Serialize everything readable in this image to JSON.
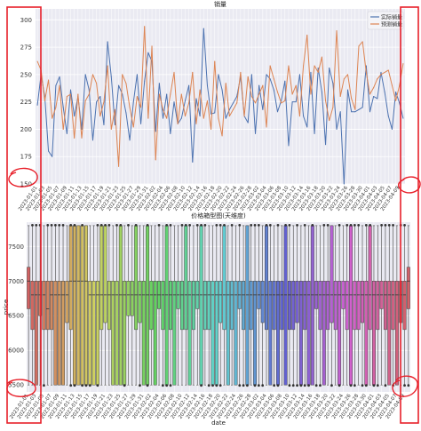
{
  "colors": {
    "background": "#ffffff",
    "plot_bg": "#eaeaf2",
    "grid": "#ffffff",
    "actual": "#4c72b0",
    "predicted": "#dd8452",
    "annotation": "#e8202a"
  },
  "chart_data": [
    {
      "type": "line",
      "title": "销量",
      "xlabel": "",
      "ylabel": "",
      "ylim": [
        150,
        310
      ],
      "yticks": [
        150,
        175,
        200,
        225,
        250,
        275,
        300
      ],
      "grid": true,
      "legend": "top-right",
      "x": [
        "2023-01-01",
        "2023-01-02",
        "2023-01-03",
        "2023-01-04",
        "2023-01-05",
        "2023-01-06",
        "2023-01-07",
        "2023-01-08",
        "2023-01-09",
        "2023-01-10",
        "2023-01-11",
        "2023-01-12",
        "2023-01-13",
        "2023-01-14",
        "2023-01-15",
        "2023-01-16",
        "2023-01-17",
        "2023-01-18",
        "2023-01-19",
        "2023-01-20",
        "2023-01-21",
        "2023-01-22",
        "2023-01-23",
        "2023-01-24",
        "2023-01-25",
        "2023-01-26",
        "2023-01-27",
        "2023-01-28",
        "2023-01-29",
        "2023-01-30",
        "2023-01-31",
        "2023-02-01",
        "2023-02-02",
        "2023-02-03",
        "2023-02-04",
        "2023-02-05",
        "2023-02-06",
        "2023-02-07",
        "2023-02-08",
        "2023-02-09",
        "2023-02-10",
        "2023-02-11",
        "2023-02-12",
        "2023-02-13",
        "2023-02-14",
        "2023-02-15",
        "2023-02-16",
        "2023-02-17",
        "2023-02-18",
        "2023-02-19",
        "2023-02-20",
        "2023-02-21",
        "2023-02-22",
        "2023-02-23",
        "2023-02-24",
        "2023-02-25",
        "2023-02-26",
        "2023-02-27",
        "2023-02-28",
        "2023-03-01",
        "2023-03-02",
        "2023-03-03",
        "2023-03-04",
        "2023-03-05",
        "2023-03-06",
        "2023-03-07",
        "2023-03-08",
        "2023-03-09",
        "2023-03-10",
        "2023-03-11",
        "2023-03-12",
        "2023-03-13",
        "2023-03-14",
        "2023-03-15",
        "2023-03-16",
        "2023-03-17",
        "2023-03-18",
        "2023-03-19",
        "2023-03-20",
        "2023-03-21",
        "2023-03-22",
        "2023-03-23",
        "2023-03-24",
        "2023-03-25",
        "2023-03-26",
        "2023-03-27",
        "2023-03-28",
        "2023-03-29",
        "2023-03-30",
        "2023-03-31",
        "2023-04-01",
        "2023-04-02",
        "2023-04-03",
        "2023-04-04",
        "2023-04-05",
        "2023-04-06",
        "2023-04-07",
        "2023-04-08",
        "2023-04-09",
        "2023-04-10"
      ],
      "series": [
        {
          "name": "实际销量",
          "values": [
            222,
            250,
            230,
            180,
            175,
            240,
            248,
            220,
            196,
            236,
            212,
            230,
            200,
            250,
            236,
            190,
            225,
            230,
            204,
            280,
            248,
            204,
            240,
            232,
            215,
            190,
            225,
            250,
            205,
            244,
            270,
            262,
            198,
            242,
            210,
            232,
            196,
            225,
            205,
            210,
            226,
            240,
            170,
            228,
            212,
            292,
            240,
            214,
            215,
            250,
            236,
            210,
            218,
            224,
            230,
            248,
            212,
            206,
            250,
            196,
            240,
            218,
            250,
            246,
            236,
            216,
            226,
            244,
            185,
            225,
            225,
            250,
            212,
            202,
            252,
            196,
            256,
            234,
            186,
            256,
            242,
            200,
            216,
            150,
            236,
            216,
            216,
            218,
            220,
            258,
            216,
            230,
            228,
            252,
            234,
            212,
            200,
            234,
            224,
            210
          ]
        },
        {
          "name": "预测销量",
          "values": [
            262,
            254,
            226,
            245,
            210,
            220,
            240,
            200,
            230,
            232,
            192,
            232,
            192,
            226,
            232,
            250,
            242,
            212,
            225,
            258,
            200,
            218,
            166,
            250,
            242,
            220,
            202,
            230,
            220,
            294,
            210,
            276,
            172,
            232,
            218,
            210,
            232,
            252,
            205,
            232,
            212,
            224,
            252,
            205,
            236,
            210,
            226,
            200,
            262,
            210,
            194,
            242,
            212,
            218,
            224,
            252,
            212,
            248,
            230,
            224,
            232,
            240,
            202,
            258,
            246,
            234,
            224,
            226,
            258,
            232,
            240,
            212,
            258,
            286,
            232,
            258,
            252,
            266,
            226,
            208,
            220,
            290,
            230,
            246,
            250,
            228,
            218,
            276,
            280,
            252,
            232,
            238,
            246,
            250,
            252,
            254,
            240,
            226,
            240,
            260
          ]
        }
      ]
    },
    {
      "type": "box",
      "title": "价格箱型图(天维度)",
      "xlabel": "date",
      "ylabel": "price",
      "ylim": [
        5400,
        7850
      ],
      "yticks": [
        5500,
        6000,
        6500,
        7000,
        7500
      ],
      "grid": true,
      "whisker_low": 5500,
      "whisker_high": 7800,
      "categories": [
        "2023-01-01",
        "2023-01-02",
        "2023-01-03",
        "2023-01-04",
        "2023-01-05",
        "2023-01-06",
        "2023-01-07",
        "2023-01-08",
        "2023-01-09",
        "2023-01-10",
        "2023-01-11",
        "2023-01-12",
        "2023-01-13",
        "2023-01-14",
        "2023-01-15",
        "2023-01-16",
        "2023-01-17",
        "2023-01-18",
        "2023-01-19",
        "2023-01-20",
        "2023-01-21",
        "2023-01-22",
        "2023-01-23",
        "2023-01-24",
        "2023-01-25",
        "2023-01-26",
        "2023-01-27",
        "2023-01-28",
        "2023-01-29",
        "2023-01-30",
        "2023-01-31",
        "2023-02-01",
        "2023-02-02",
        "2023-02-03",
        "2023-02-04",
        "2023-02-05",
        "2023-02-06",
        "2023-02-07",
        "2023-02-08",
        "2023-02-09",
        "2023-02-10",
        "2023-02-11",
        "2023-02-12",
        "2023-02-13",
        "2023-02-14",
        "2023-02-15",
        "2023-02-16",
        "2023-02-17",
        "2023-02-18",
        "2023-02-19",
        "2023-02-20",
        "2023-02-21",
        "2023-02-22",
        "2023-02-23",
        "2023-02-24",
        "2023-02-25",
        "2023-02-26",
        "2023-02-27",
        "2023-02-28",
        "2023-03-01",
        "2023-03-02",
        "2023-03-03",
        "2023-03-04",
        "2023-03-05",
        "2023-03-06",
        "2023-03-07",
        "2023-03-08",
        "2023-03-09",
        "2023-03-10",
        "2023-03-11",
        "2023-03-12",
        "2023-03-13",
        "2023-03-14",
        "2023-03-15",
        "2023-03-16",
        "2023-03-17",
        "2023-03-18",
        "2023-03-19",
        "2023-03-20",
        "2023-03-21",
        "2023-03-22",
        "2023-03-23",
        "2023-03-24",
        "2023-03-25",
        "2023-03-26",
        "2023-03-27",
        "2023-03-28",
        "2023-03-29",
        "2023-03-30",
        "2023-03-31",
        "2023-04-01",
        "2023-04-02",
        "2023-04-03",
        "2023-04-04",
        "2023-04-05",
        "2023-04-06",
        "2023-04-07",
        "2023-04-08",
        "2023-04-09",
        "2023-04-10"
      ],
      "tick_labels": [
        "2023-01-01",
        "2023-01-03",
        "2023-01-05",
        "2023-01-07",
        "2023-01-09",
        "2023-01-11",
        "2023-01-13",
        "2023-01-15",
        "2023-01-17",
        "2023-01-19",
        "2023-01-21",
        "2023-01-23",
        "2023-01-25",
        "2023-01-27",
        "2023-01-29",
        "2023-01-31",
        "2023-02-02",
        "2023-02-04",
        "2023-02-06",
        "2023-02-08",
        "2023-02-10",
        "2023-02-12",
        "2023-02-14",
        "2023-02-16",
        "2023-02-18",
        "2023-02-20",
        "2023-02-22",
        "2023-02-24",
        "2023-02-26",
        "2023-02-28",
        "2023-03-02",
        "2023-03-04",
        "2023-03-06",
        "2023-03-08",
        "2023-03-10",
        "2023-03-12",
        "2023-03-14",
        "2023-03-16",
        "2023-03-18",
        "2023-03-20",
        "2023-03-22",
        "2023-03-24",
        "2023-03-26",
        "2023-03-28",
        "2023-03-30",
        "2023-04-01",
        "2023-04-03",
        "2023-04-05",
        "2023-04-07",
        "2023-04-09"
      ],
      "q1": [
        6600,
        6300,
        5500,
        6500,
        6300,
        6300,
        6300,
        5500,
        5500,
        5500,
        6400,
        6300,
        5500,
        5500,
        5500,
        5500,
        5500,
        5500,
        5500,
        6300,
        6400,
        6300,
        5500,
        5500,
        5500,
        5500,
        6500,
        6500,
        6300,
        6400,
        5500,
        5500,
        6300,
        5500,
        6600,
        6300,
        5500,
        6300,
        5500,
        6600,
        6300,
        6300,
        5500,
        6300,
        6600,
        5500,
        6300,
        6300,
        5500,
        5500,
        6400,
        6300,
        5500,
        6300,
        5500,
        6600,
        6300,
        5500,
        6300,
        5500,
        6600,
        6400,
        6300,
        5500,
        6300,
        5500,
        6300,
        5500,
        6300,
        6300,
        6400,
        5500,
        6300,
        5500,
        5500,
        6600,
        6300,
        5500,
        6300,
        6400,
        6300,
        5500,
        6600,
        6300,
        5500,
        6300,
        6300,
        6400,
        5500,
        6300,
        5500,
        6300,
        6600,
        6300,
        5500,
        6300,
        5500,
        6400,
        6300,
        6600
      ],
      "median": [
        7000,
        6800,
        6800,
        6800,
        6800,
        6600,
        6800,
        6800,
        6800,
        6800,
        6800,
        7000,
        7000,
        7000,
        7000,
        7000,
        6800,
        6800,
        6800,
        6800,
        6800,
        6800,
        6800,
        6800,
        6800,
        6800,
        6800,
        6800,
        6800,
        6800,
        6800,
        6800,
        6800,
        6800,
        6800,
        6800,
        6800,
        6800,
        6800,
        6800,
        6800,
        6800,
        6800,
        6800,
        6800,
        6800,
        6800,
        6800,
        6800,
        6800,
        6800,
        6800,
        6800,
        6800,
        6800,
        6800,
        6800,
        6800,
        6800,
        6800,
        6800,
        6800,
        6800,
        6800,
        6800,
        6800,
        6800,
        6800,
        6800,
        6800,
        6800,
        6800,
        6800,
        6800,
        6800,
        6800,
        6800,
        6800,
        6800,
        6800,
        6800,
        6800,
        6800,
        6800,
        6800,
        6800,
        6800,
        6800,
        6800,
        6800,
        6800,
        6800,
        6800,
        6800,
        6800,
        6800,
        6800,
        6800,
        6800,
        7000
      ],
      "q3": [
        7200,
        7000,
        7000,
        7000,
        7000,
        7000,
        7000,
        7000,
        7000,
        7000,
        7000,
        7800,
        7800,
        7800,
        7800,
        7800,
        7000,
        7000,
        7000,
        7800,
        7800,
        7000,
        7000,
        7000,
        7800,
        7000,
        7000,
        7000,
        7800,
        7000,
        7000,
        7800,
        7000,
        7000,
        7000,
        7000,
        7800,
        7000,
        7000,
        7000,
        7000,
        7800,
        7000,
        7000,
        7000,
        7800,
        7000,
        7000,
        7000,
        7000,
        7000,
        7800,
        7000,
        7000,
        7000,
        7000,
        7000,
        7800,
        7000,
        7000,
        7000,
        7000,
        7800,
        7000,
        7000,
        7000,
        7000,
        7800,
        7000,
        7000,
        7000,
        7000,
        7000,
        7000,
        7800,
        7000,
        7000,
        7000,
        7000,
        7800,
        7000,
        7000,
        7000,
        7000,
        7800,
        7000,
        7000,
        7000,
        7000,
        7800,
        7000,
        7000,
        7000,
        7000,
        7000,
        7000,
        7000,
        7000,
        7000,
        7200
      ]
    }
  ]
}
